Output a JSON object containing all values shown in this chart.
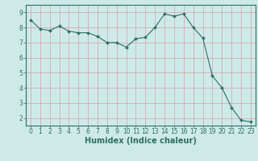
{
  "x": [
    0,
    1,
    2,
    3,
    4,
    5,
    6,
    7,
    8,
    9,
    10,
    11,
    12,
    13,
    14,
    15,
    16,
    17,
    18,
    19,
    20,
    21,
    22,
    23
  ],
  "y": [
    8.5,
    7.9,
    7.8,
    8.1,
    7.75,
    7.65,
    7.65,
    7.4,
    7.0,
    7.0,
    6.7,
    7.25,
    7.35,
    8.0,
    8.9,
    8.75,
    8.9,
    8.0,
    7.3,
    4.8,
    4.0,
    2.7,
    1.85,
    1.75
  ],
  "xlabel": "Humidex (Indice chaleur)",
  "xlim": [
    -0.5,
    23.5
  ],
  "ylim": [
    1.5,
    9.5
  ],
  "yticks": [
    2,
    3,
    4,
    5,
    6,
    7,
    8,
    9
  ],
  "xticks": [
    0,
    1,
    2,
    3,
    4,
    5,
    6,
    7,
    8,
    9,
    10,
    11,
    12,
    13,
    14,
    15,
    16,
    17,
    18,
    19,
    20,
    21,
    22,
    23
  ],
  "line_color": "#2d6e63",
  "marker": "D",
  "marker_size": 2.0,
  "bg_color": "#ceeae8",
  "grid_color": "#d4a0a8",
  "axis_color": "#2d6e63",
  "tick_color": "#2d6e63",
  "label_color": "#2d6e63",
  "tick_fontsize": 5.5,
  "label_fontsize": 7.0
}
